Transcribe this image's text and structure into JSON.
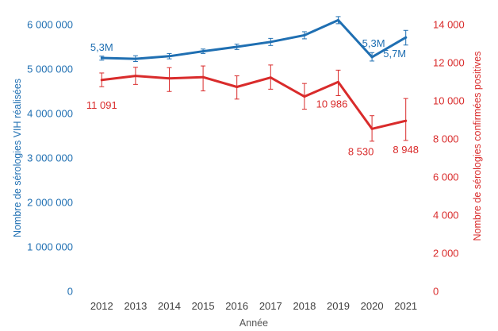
{
  "chart_data": {
    "type": "line",
    "xlabel": "Année",
    "categories": [
      "2012",
      "2013",
      "2014",
      "2015",
      "2016",
      "2017",
      "2018",
      "2019",
      "2020",
      "2021"
    ],
    "y_left": {
      "label": "Nombre de sérologies VIH réalisées",
      "lim": [
        0,
        6000000
      ],
      "ticks": [
        0,
        1000000,
        2000000,
        3000000,
        4000000,
        5000000,
        6000000
      ],
      "tick_labels": [
        "0",
        "1 000 000",
        "2 000 000",
        "3 000 000",
        "4 000 000",
        "5 000 000",
        "6 000 000"
      ],
      "color": "#1f6fb2"
    },
    "y_right": {
      "label": "Nombre de sérologies confirmées positives",
      "lim": [
        0,
        14000
      ],
      "ticks": [
        0,
        2000,
        4000,
        6000,
        8000,
        10000,
        12000,
        14000
      ],
      "tick_labels": [
        "0",
        "2 000",
        "4 000",
        "6 000",
        "8 000",
        "10 000",
        "12 000",
        "14 000"
      ],
      "color": "#d92b2b"
    },
    "series": [
      {
        "axis": "left",
        "color": "#1f6fb2",
        "values": [
          5250000,
          5230000,
          5290000,
          5400000,
          5500000,
          5610000,
          5760000,
          6100000,
          5270000,
          5710000
        ],
        "err_low": [
          5200000,
          5170000,
          5230000,
          5350000,
          5440000,
          5530000,
          5680000,
          6020000,
          5180000,
          5540000
        ],
        "err_high": [
          5290000,
          5300000,
          5350000,
          5450000,
          5560000,
          5690000,
          5840000,
          6180000,
          5370000,
          5870000
        ],
        "data_labels": [
          {
            "index": 0,
            "text": "5,3M",
            "pos": "above"
          },
          {
            "index": 8,
            "text": "5,3M",
            "pos": "above"
          },
          {
            "index": 9,
            "text": "5,7M",
            "pos": "below-left"
          }
        ]
      },
      {
        "axis": "right",
        "color": "#d92b2b",
        "values": [
          11091,
          11310,
          11180,
          11240,
          10730,
          11220,
          10225,
          10986,
          8530,
          8948
        ],
        "err_low": [
          10740,
          10860,
          10490,
          10520,
          10090,
          10610,
          9560,
          10270,
          7880,
          7920
        ],
        "err_high": [
          11460,
          11760,
          11740,
          11830,
          11310,
          11880,
          10910,
          11610,
          9220,
          10120
        ],
        "data_labels": [
          {
            "index": 0,
            "text": "11 091",
            "pos": "below"
          },
          {
            "index": 7,
            "text": "10 986",
            "pos": "below-left"
          },
          {
            "index": 8,
            "text": "8 530",
            "pos": "below-left"
          },
          {
            "index": 9,
            "text": "8 948",
            "pos": "below"
          }
        ]
      }
    ]
  }
}
